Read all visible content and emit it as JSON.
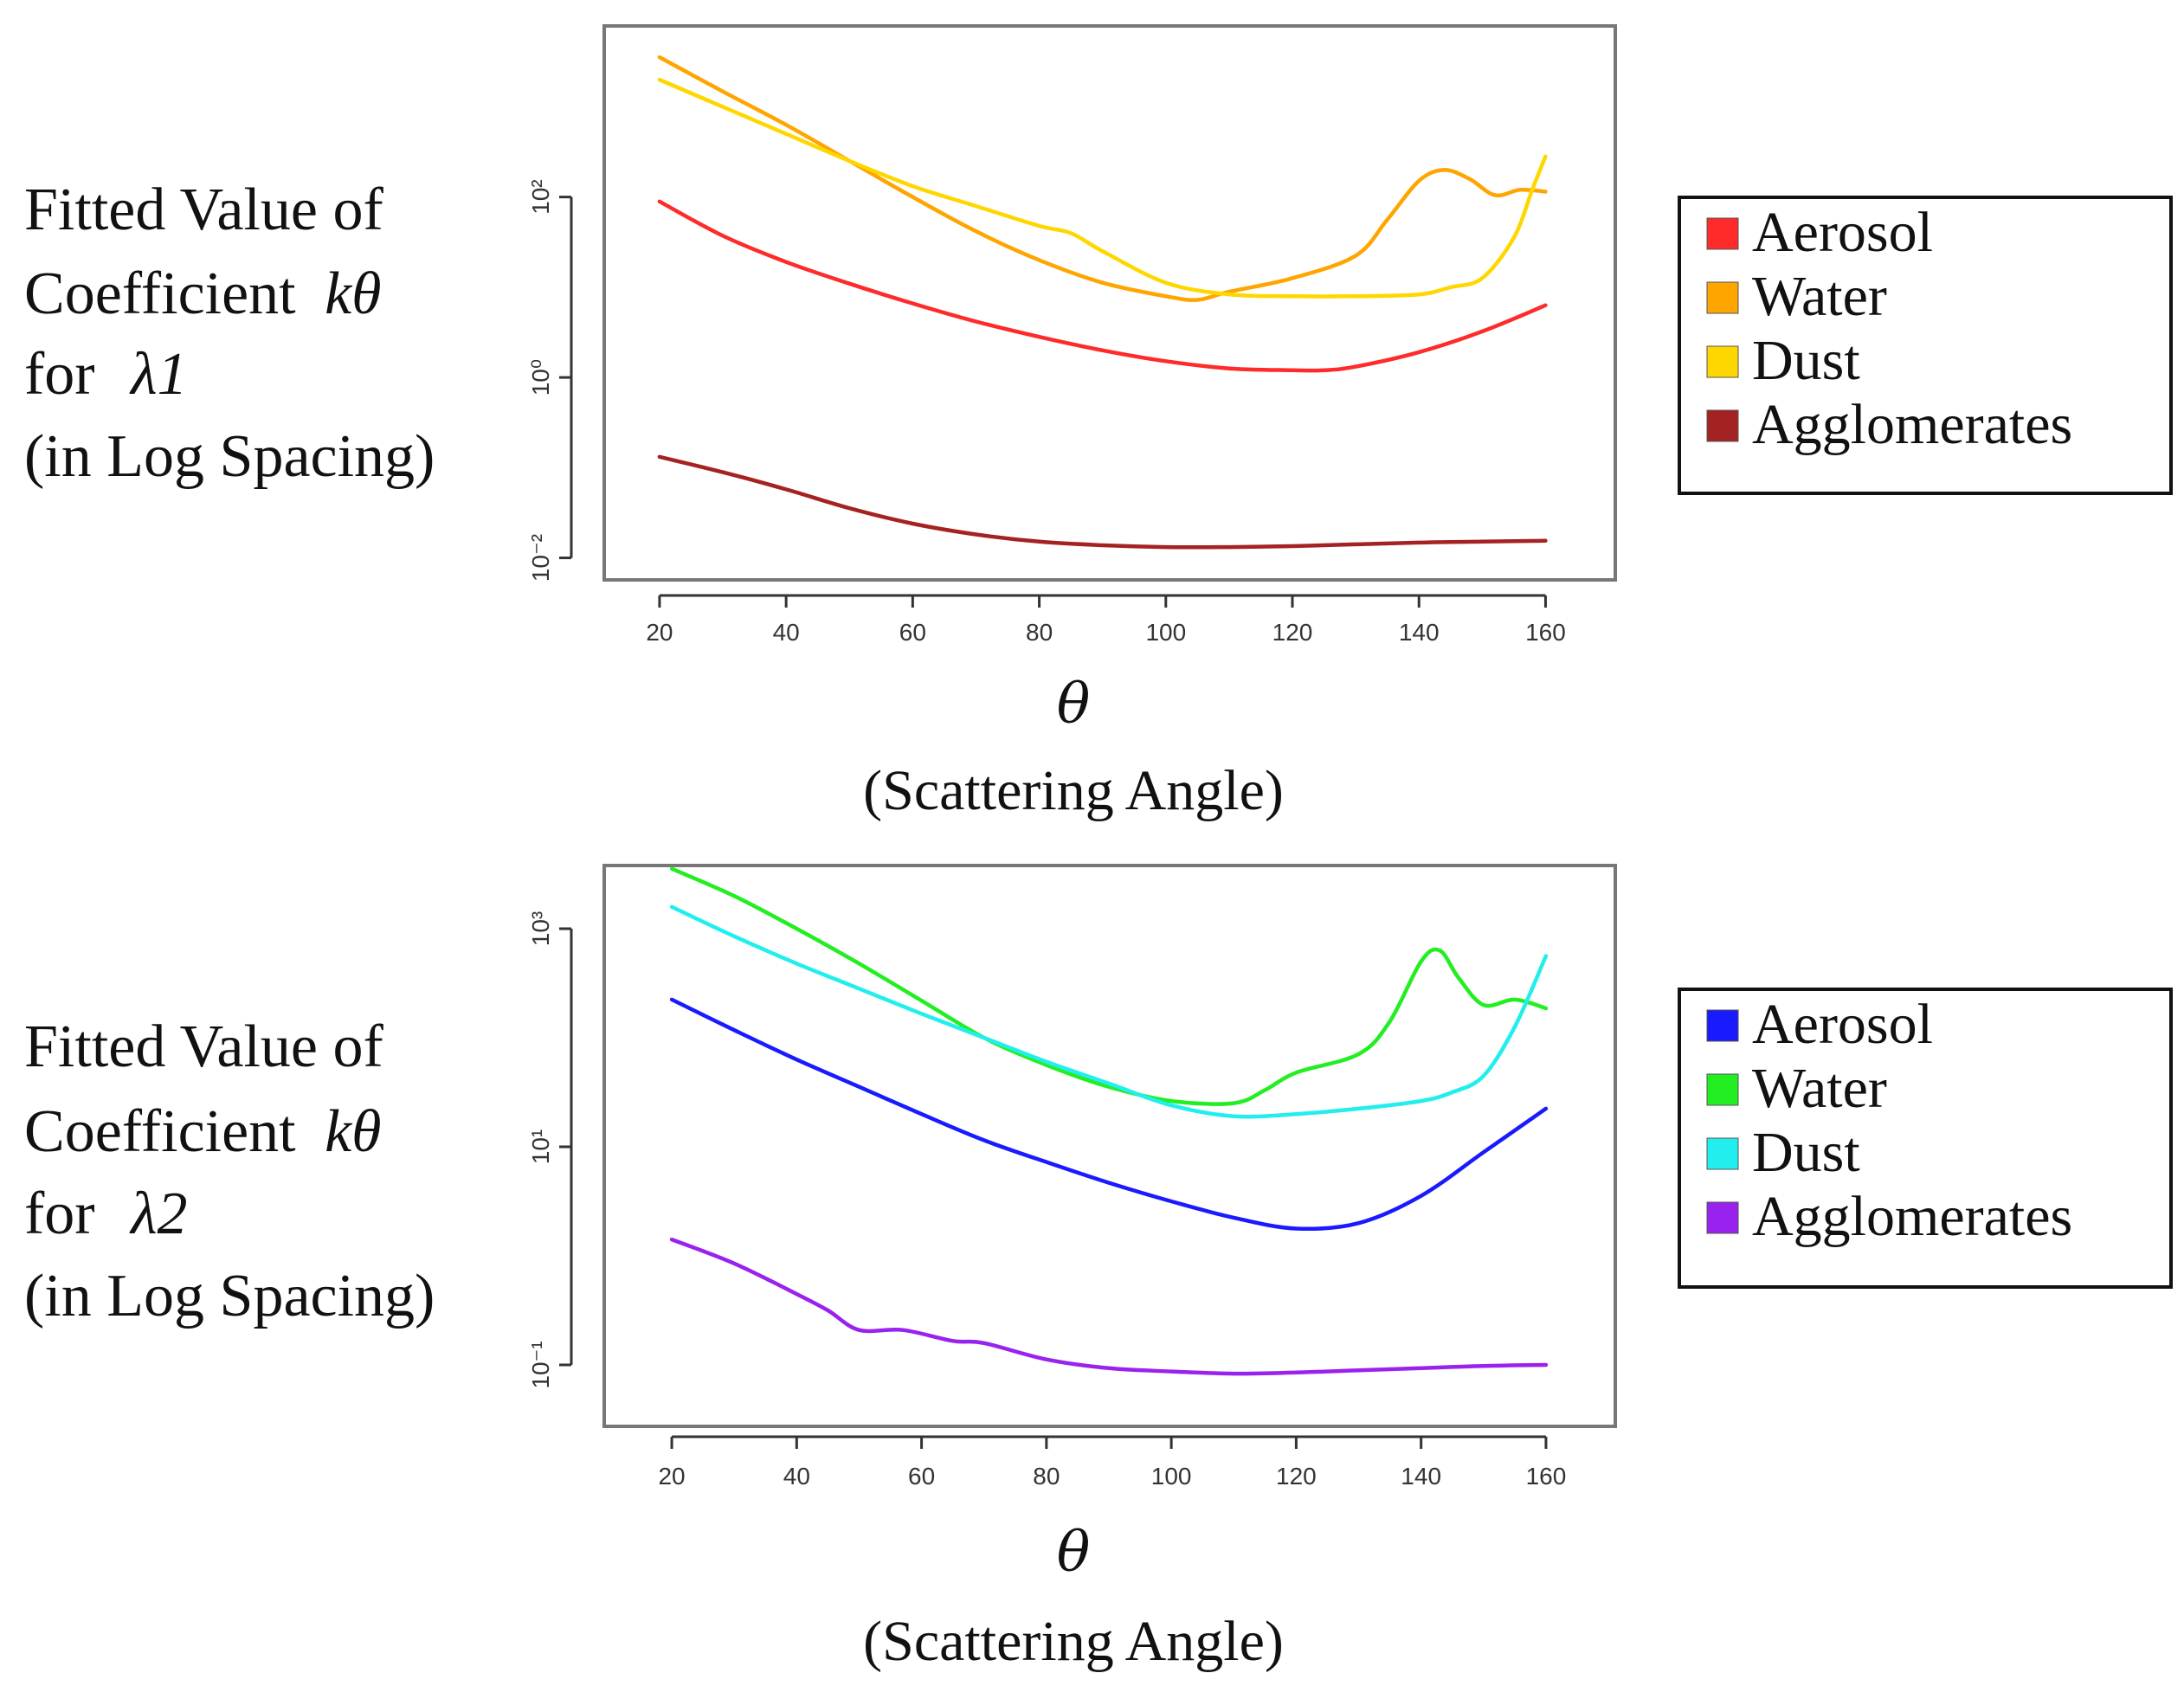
{
  "chart_data": [
    {
      "type": "line",
      "ylabel_lines": [
        "Fitted Value of",
        "Coefficient",
        "for",
        "(in Log Spacing)"
      ],
      "ylabel_symbol": "kθ",
      "ylabel_lambda": "λ1",
      "xlabel_symbol": "θ",
      "xlabel_desc": "(Scattering Angle)",
      "xscale": "linear",
      "yscale": "log",
      "xlim": [
        17,
        165
      ],
      "ylim_log10": [
        -2.1,
        3.8
      ],
      "xticks": [
        20,
        40,
        60,
        80,
        100,
        120,
        140,
        160
      ],
      "xtick_labels": [
        "20",
        "40",
        "60",
        "80",
        "100",
        "120",
        "140",
        "160"
      ],
      "yticks_log10": [
        -2,
        0,
        2
      ],
      "ytick_labels": [
        "10⁻²",
        "10⁰",
        "10²"
      ],
      "legend_position": "right",
      "series": [
        {
          "name": "Aerosol",
          "color": "#ff2a2a",
          "x": [
            20,
            30,
            40,
            50,
            60,
            70,
            80,
            90,
            100,
            110,
            120,
            125,
            130,
            140,
            150,
            160
          ],
          "y_log10": [
            1.95,
            1.57,
            1.28,
            1.04,
            0.82,
            0.62,
            0.45,
            0.3,
            0.18,
            0.1,
            0.08,
            0.08,
            0.12,
            0.28,
            0.51,
            0.8
          ]
        },
        {
          "name": "Water",
          "color": "#ffa500",
          "x": [
            20,
            30,
            40,
            50,
            60,
            70,
            80,
            90,
            100,
            105,
            110,
            120,
            130,
            135,
            140,
            144,
            148,
            152,
            156,
            160
          ],
          "y_log10": [
            3.55,
            3.17,
            2.8,
            2.4,
            2.0,
            1.62,
            1.3,
            1.05,
            0.9,
            0.86,
            0.95,
            1.1,
            1.35,
            1.75,
            2.18,
            2.3,
            2.2,
            2.02,
            2.08,
            2.06
          ]
        },
        {
          "name": "Dust",
          "color": "#ffd700",
          "x": [
            20,
            30,
            40,
            50,
            60,
            70,
            80,
            85,
            90,
            100,
            110,
            120,
            130,
            140,
            145,
            150,
            155,
            158,
            160
          ],
          "y_log10": [
            3.3,
            3.0,
            2.7,
            2.4,
            2.12,
            1.9,
            1.68,
            1.6,
            1.4,
            1.05,
            0.92,
            0.9,
            0.9,
            0.92,
            1.0,
            1.1,
            1.55,
            2.1,
            2.45
          ]
        },
        {
          "name": "Agglomerates",
          "color": "#a52222",
          "x": [
            20,
            30,
            40,
            50,
            60,
            70,
            80,
            90,
            100,
            110,
            120,
            130,
            140,
            150,
            160
          ],
          "y_log10": [
            -0.88,
            -1.05,
            -1.24,
            -1.45,
            -1.62,
            -1.74,
            -1.82,
            -1.86,
            -1.88,
            -1.88,
            -1.87,
            -1.85,
            -1.83,
            -1.82,
            -1.81
          ]
        }
      ]
    },
    {
      "type": "line",
      "ylabel_lines": [
        "Fitted Value of",
        "Coefficient",
        "for",
        "(in Log Spacing)"
      ],
      "ylabel_symbol": "kθ",
      "ylabel_lambda": "λ2",
      "xlabel_symbol": "θ",
      "xlabel_desc": "(Scattering Angle)",
      "xscale": "linear",
      "yscale": "log",
      "xlim": [
        15,
        165
      ],
      "ylim_log10": [
        -1.5,
        3.5
      ],
      "xticks": [
        20,
        40,
        60,
        80,
        100,
        120,
        140,
        160
      ],
      "xtick_labels": [
        "20",
        "40",
        "60",
        "80",
        "100",
        "120",
        "140",
        "160"
      ],
      "yticks_log10": [
        -1,
        1,
        3
      ],
      "ytick_labels": [
        "10⁻¹",
        "10¹",
        "10³"
      ],
      "legend_position": "right",
      "series": [
        {
          "name": "Aerosol",
          "color": "#1a1aff",
          "x": [
            20,
            30,
            40,
            50,
            60,
            70,
            80,
            90,
            100,
            110,
            120,
            130,
            140,
            150,
            160
          ],
          "y_log10": [
            2.35,
            2.07,
            1.8,
            1.55,
            1.3,
            1.06,
            0.86,
            0.67,
            0.5,
            0.35,
            0.25,
            0.3,
            0.55,
            0.95,
            1.35
          ]
        },
        {
          "name": "Water",
          "color": "#22ee22",
          "x": [
            20,
            30,
            40,
            50,
            60,
            70,
            80,
            90,
            100,
            110,
            115,
            120,
            130,
            135,
            140,
            143,
            146,
            150,
            155,
            160
          ],
          "y_log10": [
            3.55,
            3.3,
            3.0,
            2.68,
            2.34,
            2.0,
            1.75,
            1.55,
            1.42,
            1.4,
            1.52,
            1.68,
            1.85,
            2.15,
            2.7,
            2.8,
            2.55,
            2.3,
            2.35,
            2.27
          ]
        },
        {
          "name": "Dust",
          "color": "#22eeee",
          "x": [
            20,
            30,
            40,
            50,
            60,
            70,
            80,
            90,
            100,
            110,
            120,
            130,
            140,
            145,
            150,
            155,
            160
          ],
          "y_log10": [
            3.2,
            2.93,
            2.68,
            2.45,
            2.22,
            2.0,
            1.78,
            1.58,
            1.38,
            1.28,
            1.3,
            1.35,
            1.42,
            1.5,
            1.65,
            2.1,
            2.75
          ]
        },
        {
          "name": "Agglomerates",
          "color": "#9922ee",
          "x": [
            20,
            30,
            40,
            45,
            50,
            57,
            65,
            70,
            80,
            90,
            100,
            110,
            120,
            130,
            140,
            150,
            160
          ],
          "y_log10": [
            0.15,
            -0.07,
            -0.35,
            -0.5,
            -0.68,
            -0.68,
            -0.78,
            -0.8,
            -0.95,
            -1.03,
            -1.06,
            -1.08,
            -1.07,
            -1.05,
            -1.03,
            -1.01,
            -1.0
          ]
        }
      ]
    }
  ]
}
